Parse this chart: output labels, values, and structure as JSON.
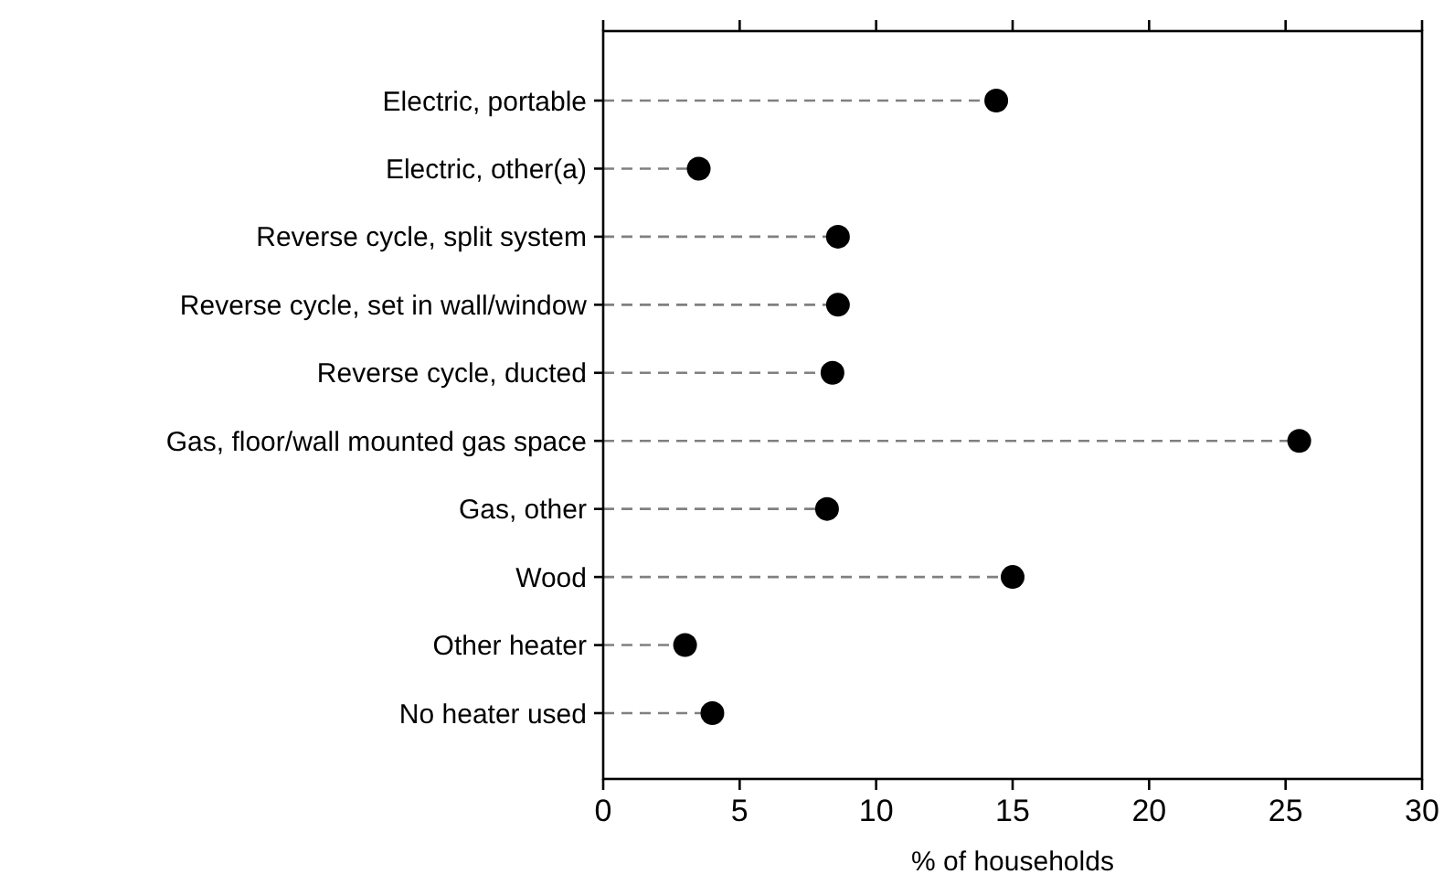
{
  "chart_data": {
    "type": "lollipop",
    "orientation": "horizontal",
    "xlabel": "% of households",
    "categories": [
      "Electric, portable",
      "Electric, other(a)",
      "Reverse cycle, split system ",
      "Reverse cycle, set in wall/window",
      "Reverse cycle, ducted",
      "Gas, floor/wall mounted gas space",
      "Gas, other",
      "Wood",
      "Other heater",
      "No heater used"
    ],
    "values": [
      14.4,
      3.5,
      8.6,
      8.6,
      8.4,
      25.5,
      8.2,
      15.0,
      3.0,
      4.0
    ],
    "color": "#000000",
    "xlim": [
      0,
      30
    ],
    "xticks": [
      0,
      5,
      10,
      15,
      20,
      25,
      30
    ],
    "marker": "circle",
    "line_style": "dashed",
    "grid": false
  }
}
